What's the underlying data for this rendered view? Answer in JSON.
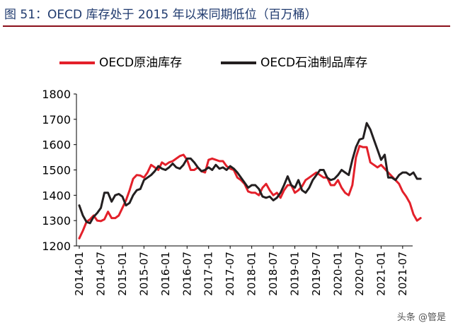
{
  "figure": {
    "title": "图 51：OECD 库存处于 2015 年以来同期低位（百万桶）",
    "watermark": "头条 @管是"
  },
  "colors": {
    "title": "#1f3a6e",
    "rule": "#8a0f1a",
    "crude": "#e3202a",
    "products": "#231f20"
  },
  "chart_data": {
    "type": "line",
    "title": "",
    "xlabel": "",
    "ylabel": "",
    "ylim": [
      1200,
      1800
    ],
    "yticks": [
      1200,
      1300,
      1400,
      1500,
      1600,
      1700,
      1800
    ],
    "xticks": [
      "2014-01",
      "2014-07",
      "2015-01",
      "2015-07",
      "2016-01",
      "2016-07",
      "2017-01",
      "2017-07",
      "2018-01",
      "2018-07",
      "2019-01",
      "2019-07",
      "2020-01",
      "2020-07",
      "2021-01",
      "2021-07"
    ],
    "x_start": "2014-01",
    "x_end": "2021-09",
    "grid": false,
    "legend_position": "top",
    "series": [
      {
        "name": "OECD原油库存",
        "color": "#e3202a",
        "values": [
          1230,
          1260,
          1295,
          1305,
          1320,
          1300,
          1298,
          1305,
          1335,
          1310,
          1310,
          1320,
          1350,
          1380,
          1420,
          1465,
          1480,
          1478,
          1470,
          1490,
          1520,
          1510,
          1500,
          1530,
          1520,
          1530,
          1535,
          1545,
          1555,
          1560,
          1540,
          1500,
          1500,
          1510,
          1495,
          1490,
          1540,
          1545,
          1540,
          1535,
          1535,
          1515,
          1505,
          1500,
          1470,
          1460,
          1445,
          1415,
          1410,
          1410,
          1400,
          1430,
          1445,
          1420,
          1400,
          1410,
          1390,
          1420,
          1440,
          1440,
          1410,
          1420,
          1435,
          1460,
          1470,
          1480,
          1490,
          1480,
          1470,
          1470,
          1440,
          1440,
          1460,
          1430,
          1410,
          1400,
          1440,
          1550,
          1595,
          1590,
          1590,
          1530,
          1520,
          1510,
          1520,
          1505,
          1490,
          1475,
          1460,
          1445,
          1415,
          1395,
          1370,
          1325,
          1300,
          1310
        ]
      },
      {
        "name": "OECD石油制品库存",
        "color": "#231f20",
        "values": [
          1360,
          1320,
          1295,
          1290,
          1315,
          1330,
          1350,
          1410,
          1410,
          1375,
          1400,
          1405,
          1395,
          1360,
          1370,
          1400,
          1420,
          1425,
          1460,
          1470,
          1480,
          1495,
          1515,
          1505,
          1500,
          1510,
          1525,
          1510,
          1505,
          1520,
          1545,
          1545,
          1530,
          1510,
          1495,
          1500,
          1510,
          1500,
          1520,
          1505,
          1510,
          1500,
          1515,
          1505,
          1490,
          1470,
          1450,
          1430,
          1440,
          1440,
          1425,
          1395,
          1390,
          1395,
          1380,
          1390,
          1410,
          1440,
          1475,
          1440,
          1430,
          1460,
          1420,
          1410,
          1430,
          1460,
          1480,
          1500,
          1500,
          1470,
          1460,
          1465,
          1480,
          1500,
          1490,
          1480,
          1540,
          1590,
          1620,
          1625,
          1685,
          1660,
          1620,
          1580,
          1540,
          1560,
          1470,
          1470,
          1460,
          1480,
          1490,
          1490,
          1480,
          1490,
          1465,
          1465
        ]
      }
    ]
  }
}
